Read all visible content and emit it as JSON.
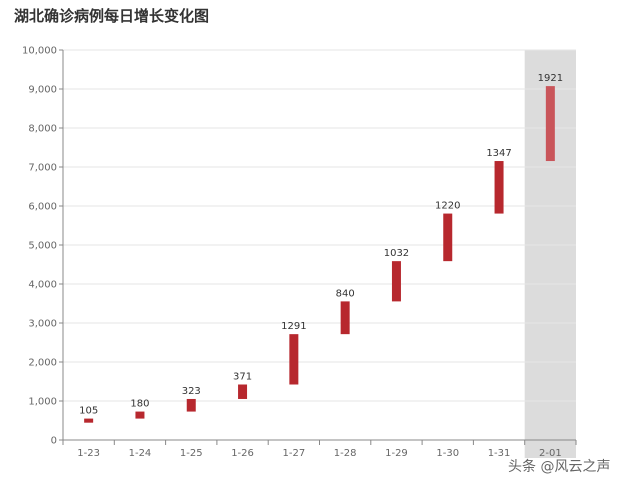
{
  "chart_data": {
    "type": "bar",
    "subtype": "waterfall",
    "title": "湖北确诊病例每日增长变化图",
    "categories": [
      "1-23",
      "1-24",
      "1-25",
      "1-26",
      "1-27",
      "1-28",
      "1-29",
      "1-30",
      "1-31",
      "2-01"
    ],
    "values": [
      105,
      180,
      323,
      371,
      1291,
      840,
      1032,
      1220,
      1347,
      1921
    ],
    "bases": [
      444,
      549,
      729,
      1052,
      1423,
      2714,
      3554,
      4586,
      5806,
      7153
    ],
    "ylim": [
      0,
      10000
    ],
    "yticks": [
      0,
      1000,
      2000,
      3000,
      4000,
      5000,
      6000,
      7000,
      8000,
      9000,
      10000
    ],
    "ytick_labels": [
      "0",
      "1,000",
      "2,000",
      "3,000",
      "4,000",
      "5,000",
      "6,000",
      "7,000",
      "8,000",
      "9,000",
      "10,000"
    ],
    "highlight_category": "2-01",
    "grid": true,
    "colors": {
      "bar": "#b7282e",
      "bar_highlight": "#c9555a",
      "highlight_band": "#dcdcdc",
      "grid": "#e6e6e6",
      "axis": "#888888"
    }
  },
  "watermark": "头条 @风云之声"
}
